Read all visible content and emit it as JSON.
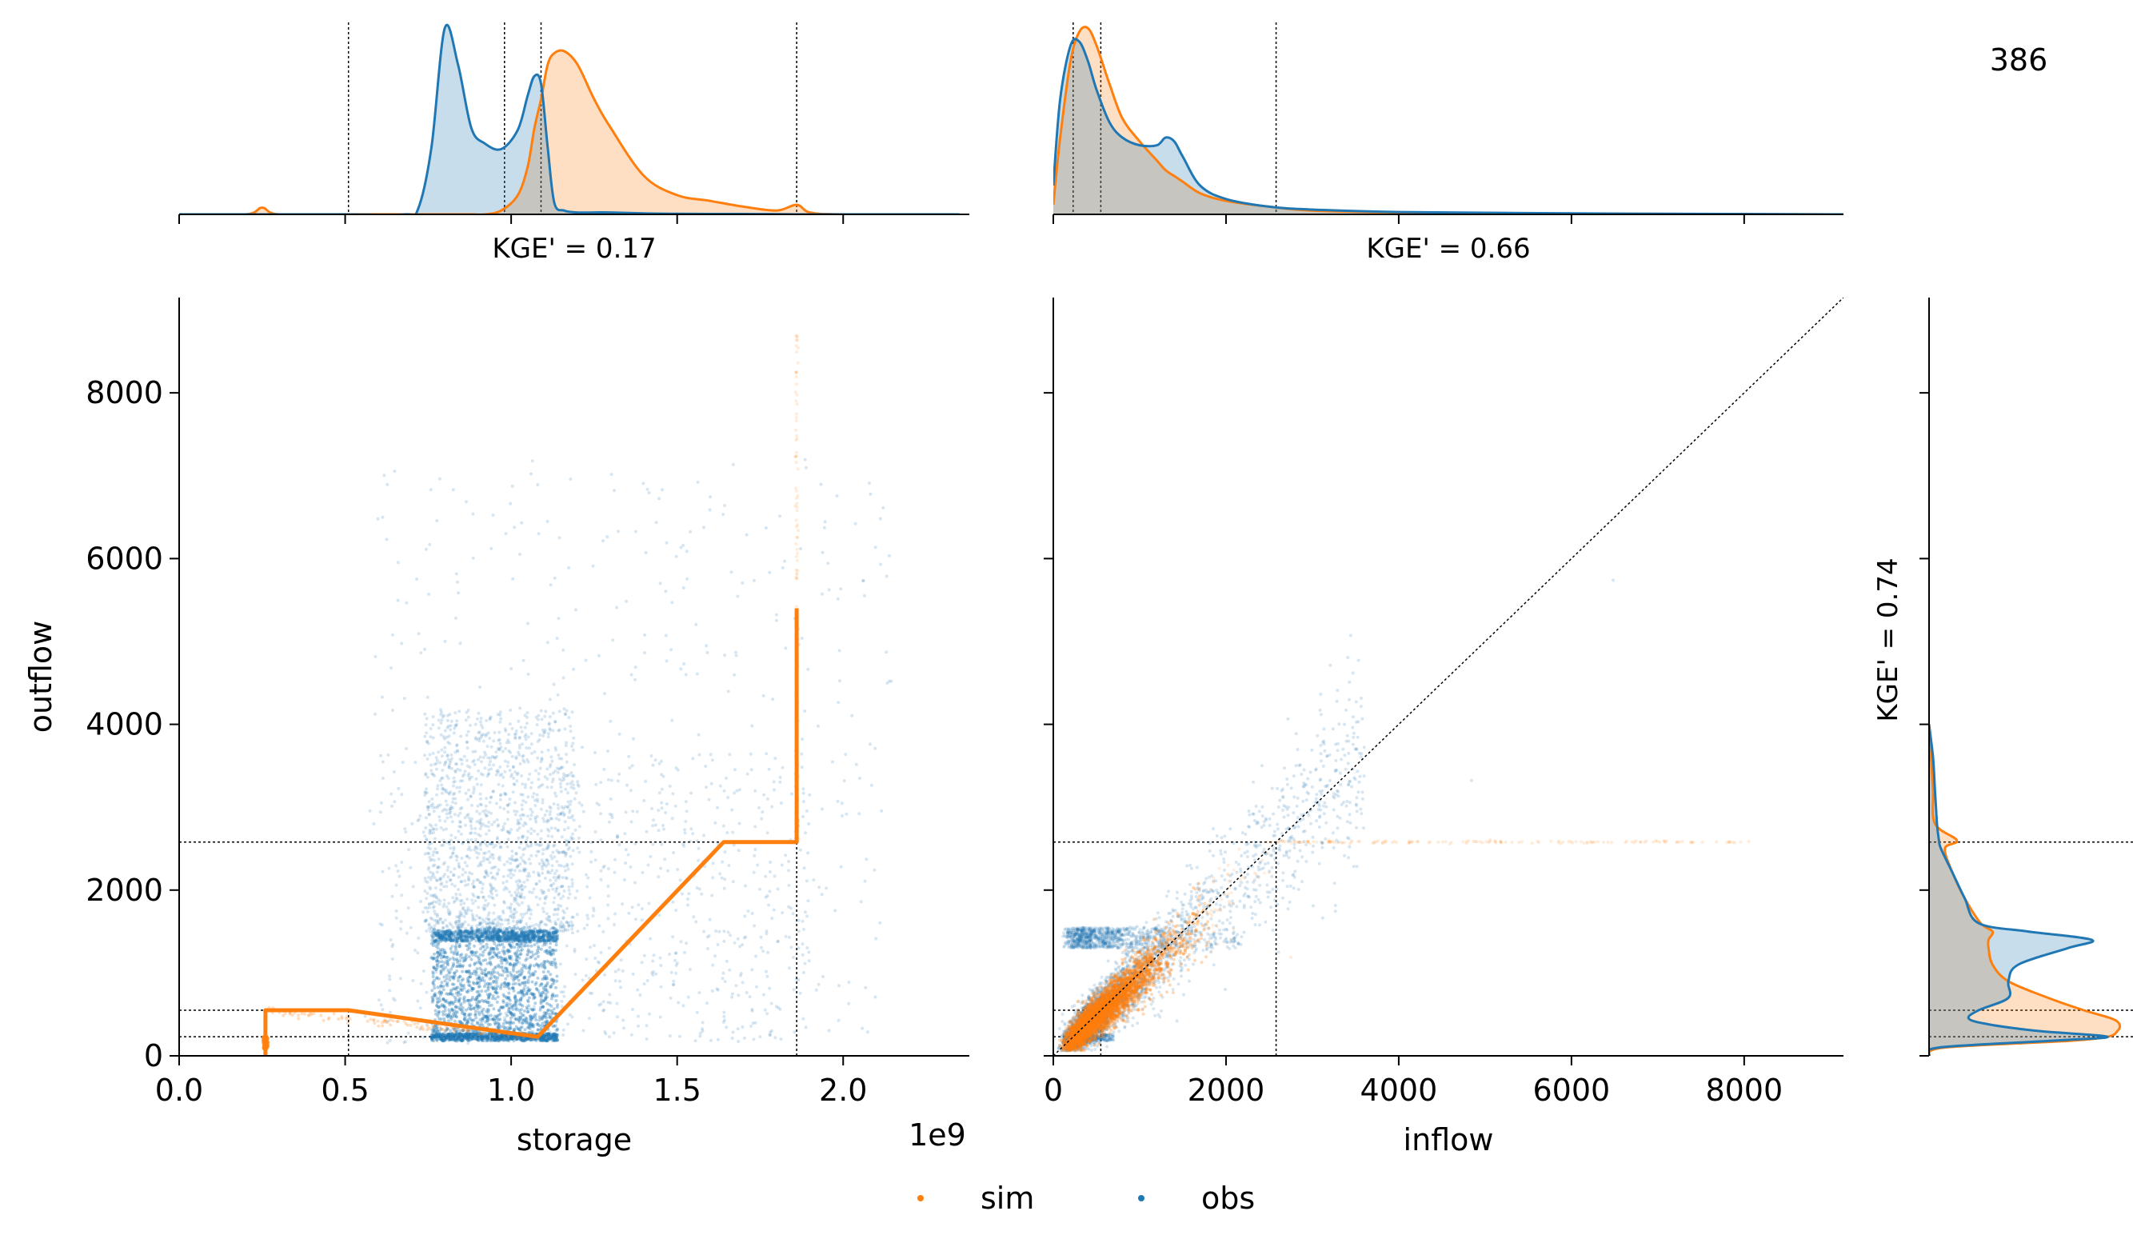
{
  "figure_id_label": "386",
  "colors": {
    "sim": "#ff7f0e",
    "obs": "#1f77b4",
    "overlap": "#c7c5bf"
  },
  "legend": {
    "sim_label": "sim",
    "obs_label": "obs"
  },
  "chart_data": [
    {
      "type": "scatter",
      "panel": "storage-outflow",
      "xlabel": "storage",
      "ylabel": "outflow",
      "x_offset_label": "1e9",
      "xlim": [
        0.0,
        2.38
      ],
      "ylim": [
        0,
        9150
      ],
      "xticks": [
        0.0,
        0.5,
        1.0,
        1.5,
        2.0
      ],
      "xtick_labels": [
        "0.0",
        "0.5",
        "1.0",
        "1.5",
        "2.0"
      ],
      "yticks": [
        0,
        2000,
        4000,
        6000,
        8000
      ],
      "ytick_labels": [
        "0",
        "2000",
        "4000",
        "6000",
        "8000"
      ],
      "series": [
        {
          "name": "sim",
          "description": "operating curve",
          "x": [
            0.26,
            0.26,
            0.51,
            1.08,
            1.64,
            1.86,
            1.86
          ],
          "y": [
            0,
            550,
            550,
            230,
            2580,
            2580,
            5400
          ]
        },
        {
          "name": "obs",
          "description": "scatter cloud",
          "x_range": [
            0.73,
            1.15
          ],
          "y_range": [
            150,
            4500
          ]
        }
      ],
      "reference_lines": {
        "vertical": [
          0.51,
          0.98,
          1.09,
          1.86
        ],
        "horizontal": [
          230,
          550,
          2580
        ]
      }
    },
    {
      "type": "scatter",
      "panel": "inflow-outflow",
      "xlabel": "inflow",
      "xlim": [
        0,
        9150
      ],
      "ylim": [
        0,
        9150
      ],
      "xticks": [
        0,
        2000,
        4000,
        6000,
        8000
      ],
      "xtick_labels": [
        "0",
        "2000",
        "4000",
        "6000",
        "8000"
      ],
      "series": [
        {
          "name": "sim",
          "description": "scatter cloud along 1:1 line capped at 2580"
        },
        {
          "name": "obs",
          "description": "scatter cloud along 1:1 line"
        }
      ],
      "reference_lines": {
        "vertical": [
          230,
          550,
          2580
        ],
        "horizontal": [
          230,
          550,
          2580
        ],
        "diagonal": [
          [
            0,
            0
          ],
          [
            9150,
            9150
          ]
        ]
      }
    },
    {
      "type": "area",
      "panel": "storage-density",
      "annotation": "KGE' = 0.17",
      "x": [
        0.0,
        0.2,
        0.25,
        0.3,
        0.5,
        0.68,
        0.72,
        0.76,
        0.8,
        0.84,
        0.88,
        0.92,
        0.97,
        1.02,
        1.05,
        1.07,
        1.09,
        1.11,
        1.13,
        1.16,
        1.2,
        1.25,
        1.3,
        1.4,
        1.5,
        1.6,
        1.7,
        1.8,
        1.86,
        1.9,
        2.0,
        2.35
      ],
      "series": [
        {
          "name": "obs",
          "values": [
            0,
            0,
            0,
            0,
            0,
            0,
            0.03,
            0.35,
            0.97,
            0.78,
            0.45,
            0.37,
            0.34,
            0.44,
            0.62,
            0.72,
            0.68,
            0.35,
            0.06,
            0.02,
            0.01,
            0.01,
            0.01,
            0.005,
            0.003,
            0.002,
            0.002,
            0.001,
            0,
            0,
            0,
            0
          ]
        },
        {
          "name": "sim",
          "values": [
            0,
            0,
            0.035,
            0,
            0,
            0,
            0,
            0,
            0,
            0,
            0,
            0,
            0.02,
            0.1,
            0.25,
            0.45,
            0.6,
            0.78,
            0.84,
            0.85,
            0.78,
            0.6,
            0.45,
            0.2,
            0.1,
            0.07,
            0.04,
            0.02,
            0.05,
            0.01,
            0,
            0
          ]
        }
      ],
      "reference_lines": {
        "vertical": [
          0.51,
          0.98,
          1.09,
          1.86
        ]
      }
    },
    {
      "type": "area",
      "panel": "inflow-density",
      "annotation": "KGE' = 0.66",
      "x": [
        0,
        80,
        200,
        300,
        400,
        500,
        650,
        800,
        1000,
        1200,
        1300,
        1400,
        1500,
        1700,
        2000,
        2500,
        3000,
        4000,
        6000,
        9150
      ],
      "series": [
        {
          "name": "obs",
          "values": [
            0.15,
            0.6,
            0.88,
            0.9,
            0.8,
            0.65,
            0.48,
            0.4,
            0.36,
            0.36,
            0.4,
            0.38,
            0.3,
            0.15,
            0.08,
            0.04,
            0.025,
            0.012,
            0.005,
            0
          ]
        },
        {
          "name": "sim",
          "values": [
            0.05,
            0.4,
            0.8,
            0.95,
            0.97,
            0.88,
            0.68,
            0.5,
            0.38,
            0.28,
            0.23,
            0.2,
            0.17,
            0.11,
            0.07,
            0.04,
            0.02,
            0.01,
            0.004,
            0
          ]
        }
      ],
      "reference_lines": {
        "vertical": [
          230,
          550,
          2580
        ]
      }
    },
    {
      "type": "area",
      "panel": "outflow-density",
      "annotation": "KGE' = 0.74",
      "y": [
        0,
        100,
        180,
        230,
        300,
        380,
        450,
        550,
        700,
        900,
        1100,
        1300,
        1400,
        1500,
        1600,
        1900,
        2200,
        2500,
        2600,
        2800,
        3200,
        3600,
        4000
      ],
      "series": [
        {
          "name": "obs",
          "values": [
            0,
            0.05,
            0.6,
            0.9,
            0.55,
            0.3,
            0.2,
            0.25,
            0.4,
            0.4,
            0.45,
            0.7,
            0.82,
            0.5,
            0.25,
            0.18,
            0.12,
            0.06,
            0.05,
            0.04,
            0.03,
            0.02,
            0
          ]
        },
        {
          "name": "sim",
          "values": [
            0,
            0.08,
            0.7,
            0.9,
            0.95,
            0.96,
            0.92,
            0.78,
            0.6,
            0.4,
            0.32,
            0.3,
            0.3,
            0.32,
            0.26,
            0.18,
            0.12,
            0.08,
            0.14,
            0.03,
            0.02,
            0.01,
            0
          ]
        }
      ],
      "reference_lines": {
        "horizontal": [
          230,
          550,
          2580
        ]
      }
    }
  ]
}
